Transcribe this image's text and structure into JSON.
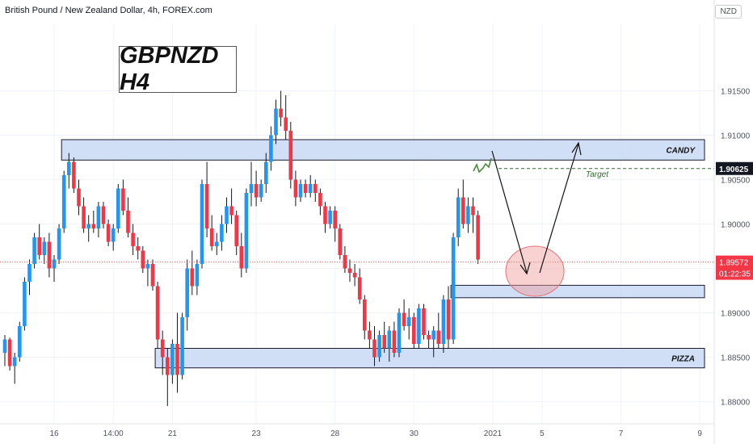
{
  "header": {
    "symbol_line": "British Pound / New Zealand Dollar, 4h, FOREX.com",
    "currency": "NZD"
  },
  "annotation_title": "GBPNZD H4",
  "chart_data": {
    "type": "candlestick",
    "instrument": "British Pound / New Zealand Dollar",
    "timeframe": "4h",
    "source": "FOREX.com",
    "ylim": [
      1.8775,
      1.9225
    ],
    "y_ticks": [
      "1.88000",
      "1.88500",
      "1.89000",
      "1.89500",
      "1.90000",
      "1.90500",
      "1.91000",
      "1.91500"
    ],
    "x_tick_labels": [
      "16",
      "14:00",
      "21",
      "23",
      "28",
      "30",
      "2021",
      "5",
      "7",
      "9"
    ],
    "x_tick_index": [
      10,
      22,
      34,
      51,
      67,
      83,
      99,
      109,
      125,
      141
    ],
    "price_labels": {
      "target_level": "1.90625",
      "last_price": "1.89572",
      "countdown": "01:22:35"
    },
    "target_level": 1.90625,
    "last_price": 1.89572,
    "zones": [
      {
        "label": "CANDY",
        "from": 1.9072,
        "to": 1.9095,
        "i0": 12,
        "i1": 144
      },
      {
        "label": "",
        "from": 1.8917,
        "to": 1.8931,
        "i0": 91,
        "i1": 144
      },
      {
        "label": "PIZZA",
        "from": 1.8838,
        "to": 1.886,
        "i0": 31,
        "i1": 144
      }
    ],
    "target_text": "Target",
    "candles": [
      [
        1.8855,
        1.8875,
        1.884,
        1.887
      ],
      [
        1.887,
        1.8872,
        1.8835,
        1.884
      ],
      [
        1.884,
        1.8855,
        1.882,
        1.885
      ],
      [
        1.885,
        1.889,
        1.8845,
        1.8885
      ],
      [
        1.8885,
        1.894,
        1.888,
        1.8935
      ],
      [
        1.8935,
        1.896,
        1.892,
        1.8955
      ],
      [
        1.8955,
        1.899,
        1.895,
        1.8985
      ],
      [
        1.8985,
        1.9,
        1.896,
        1.8965
      ],
      [
        1.8965,
        1.8985,
        1.8955,
        1.898
      ],
      [
        1.898,
        1.899,
        1.894,
        1.895
      ],
      [
        1.895,
        1.8965,
        1.8935,
        1.896
      ],
      [
        1.896,
        1.9,
        1.8955,
        1.8995
      ],
      [
        1.8995,
        1.906,
        1.899,
        1.9055
      ],
      [
        1.9055,
        1.908,
        1.904,
        1.907
      ],
      [
        1.907,
        1.9075,
        1.9035,
        1.904
      ],
      [
        1.904,
        1.905,
        1.901,
        1.902
      ],
      [
        1.902,
        1.903,
        1.899,
        1.8995
      ],
      [
        1.8995,
        1.901,
        1.898,
        1.9
      ],
      [
        1.9,
        1.9015,
        1.899,
        1.8995
      ],
      [
        1.8995,
        1.9025,
        1.8985,
        1.902
      ],
      [
        1.902,
        1.9025,
        1.8995,
        1.9
      ],
      [
        1.9,
        1.9005,
        1.8975,
        1.898
      ],
      [
        1.898,
        1.9,
        1.897,
        1.8995
      ],
      [
        1.8995,
        1.9045,
        1.899,
        1.904
      ],
      [
        1.904,
        1.905,
        1.901,
        1.9015
      ],
      [
        1.9015,
        1.903,
        1.8985,
        1.899
      ],
      [
        1.899,
        1.9,
        1.8965,
        1.8975
      ],
      [
        1.8975,
        1.8985,
        1.896,
        1.897
      ],
      [
        1.897,
        1.8975,
        1.8945,
        1.895
      ],
      [
        1.895,
        1.896,
        1.893,
        1.8955
      ],
      [
        1.8955,
        1.896,
        1.8925,
        1.893
      ],
      [
        1.893,
        1.8935,
        1.886,
        1.887
      ],
      [
        1.887,
        1.888,
        1.883,
        1.885
      ],
      [
        1.885,
        1.886,
        1.8795,
        1.883
      ],
      [
        1.883,
        1.887,
        1.882,
        1.8865
      ],
      [
        1.8865,
        1.89,
        1.881,
        1.883
      ],
      [
        1.883,
        1.89,
        1.8825,
        1.8895
      ],
      [
        1.8895,
        1.896,
        1.888,
        1.895
      ],
      [
        1.895,
        1.897,
        1.892,
        1.893
      ],
      [
        1.893,
        1.896,
        1.892,
        1.8955
      ],
      [
        1.8955,
        1.905,
        1.895,
        1.9045
      ],
      [
        1.9045,
        1.907,
        1.8985,
        1.8995
      ],
      [
        1.8995,
        1.901,
        1.897,
        1.8975
      ],
      [
        1.8975,
        1.899,
        1.8965,
        1.898
      ],
      [
        1.898,
        1.901,
        1.897,
        1.9
      ],
      [
        1.9,
        1.903,
        1.899,
        1.902
      ],
      [
        1.902,
        1.904,
        1.9,
        1.901
      ],
      [
        1.901,
        1.9015,
        1.8965,
        1.8975
      ],
      [
        1.8975,
        1.899,
        1.894,
        1.895
      ],
      [
        1.895,
        1.904,
        1.8945,
        1.9035
      ],
      [
        1.9035,
        1.907,
        1.902,
        1.9045
      ],
      [
        1.9045,
        1.906,
        1.902,
        1.903
      ],
      [
        1.903,
        1.905,
        1.9025,
        1.9045
      ],
      [
        1.9045,
        1.908,
        1.9035,
        1.907
      ],
      [
        1.907,
        1.911,
        1.906,
        1.91
      ],
      [
        1.91,
        1.914,
        1.909,
        1.913
      ],
      [
        1.913,
        1.915,
        1.911,
        1.912
      ],
      [
        1.912,
        1.9145,
        1.9095,
        1.9105
      ],
      [
        1.9105,
        1.9115,
        1.904,
        1.905
      ],
      [
        1.905,
        1.906,
        1.902,
        1.903
      ],
      [
        1.903,
        1.905,
        1.9025,
        1.9045
      ],
      [
        1.9045,
        1.905,
        1.903,
        1.9035
      ],
      [
        1.9035,
        1.9055,
        1.903,
        1.9045
      ],
      [
        1.9045,
        1.905,
        1.9025,
        1.9035
      ],
      [
        1.9035,
        1.904,
        1.901,
        1.902
      ],
      [
        1.902,
        1.9025,
        1.899,
        1.9
      ],
      [
        1.9,
        1.902,
        1.8995,
        1.9015
      ],
      [
        1.9015,
        1.902,
        1.898,
        1.8995
      ],
      [
        1.8995,
        1.9,
        1.896,
        1.8965
      ],
      [
        1.8965,
        1.8975,
        1.8945,
        1.895
      ],
      [
        1.895,
        1.896,
        1.8935,
        1.8945
      ],
      [
        1.8945,
        1.8955,
        1.893,
        1.894
      ],
      [
        1.894,
        1.895,
        1.891,
        1.8915
      ],
      [
        1.8915,
        1.892,
        1.887,
        1.888
      ],
      [
        1.888,
        1.889,
        1.886,
        1.887
      ],
      [
        1.887,
        1.8885,
        1.884,
        1.885
      ],
      [
        1.885,
        1.888,
        1.8845,
        1.8875
      ],
      [
        1.8875,
        1.889,
        1.8855,
        1.886
      ],
      [
        1.886,
        1.8885,
        1.8845,
        1.888
      ],
      [
        1.888,
        1.889,
        1.885,
        1.8855
      ],
      [
        1.8855,
        1.8905,
        1.885,
        1.89
      ],
      [
        1.89,
        1.8915,
        1.888,
        1.8885
      ],
      [
        1.8885,
        1.8905,
        1.887,
        1.8895
      ],
      [
        1.8895,
        1.89,
        1.886,
        1.8865
      ],
      [
        1.8865,
        1.891,
        1.886,
        1.8905
      ],
      [
        1.8905,
        1.891,
        1.887,
        1.8875
      ],
      [
        1.8875,
        1.888,
        1.886,
        1.887
      ],
      [
        1.887,
        1.8885,
        1.885,
        1.888
      ],
      [
        1.888,
        1.89,
        1.886,
        1.8865
      ],
      [
        1.8865,
        1.892,
        1.8855,
        1.8915
      ],
      [
        1.8915,
        1.893,
        1.886,
        1.887
      ],
      [
        1.887,
        1.899,
        1.8865,
        1.8985
      ],
      [
        1.8985,
        1.904,
        1.8975,
        1.903
      ],
      [
        1.903,
        1.905,
        1.8995,
        1.9
      ],
      [
        1.9,
        1.903,
        1.899,
        1.902
      ],
      [
        1.902,
        1.903,
        1.899,
        1.901
      ],
      [
        1.901,
        1.9015,
        1.8955,
        1.896
      ]
    ]
  }
}
